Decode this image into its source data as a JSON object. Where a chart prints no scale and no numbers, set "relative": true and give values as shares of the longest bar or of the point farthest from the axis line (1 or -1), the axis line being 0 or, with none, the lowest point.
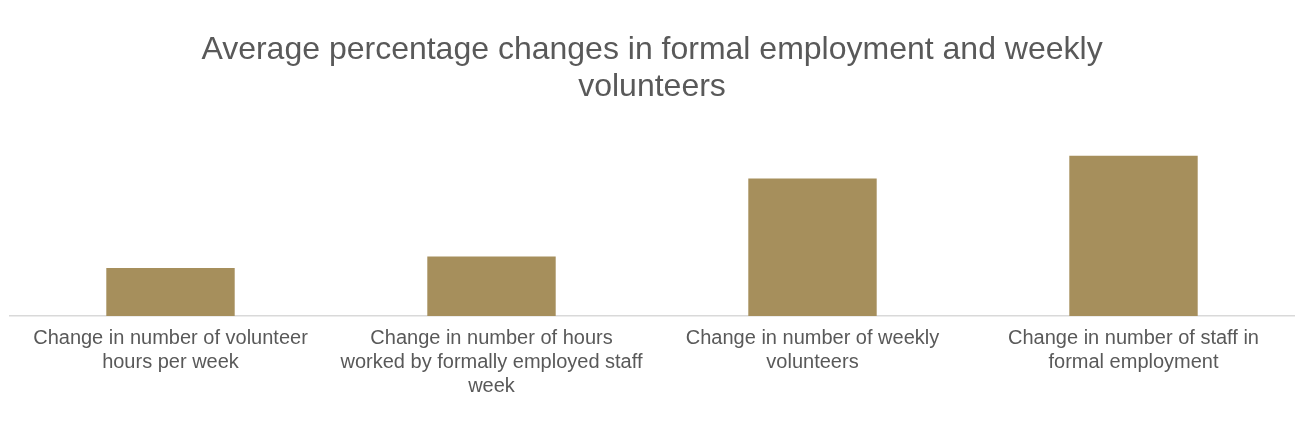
{
  "chart_data": {
    "type": "bar",
    "title": "Average percentage changes in formal employment and weekly volunteers",
    "categories": [
      "Change in number of volunteer hours per week",
      "Change in number of hours worked by formally employed staff week",
      "Change in number of weekly volunteers",
      "Change in number of staff in formal employment"
    ],
    "values": [
      0.3,
      0.371,
      0.857,
      1
    ],
    "color": "#a68f5c",
    "relative": true,
    "grid": false,
    "legend": false
  }
}
